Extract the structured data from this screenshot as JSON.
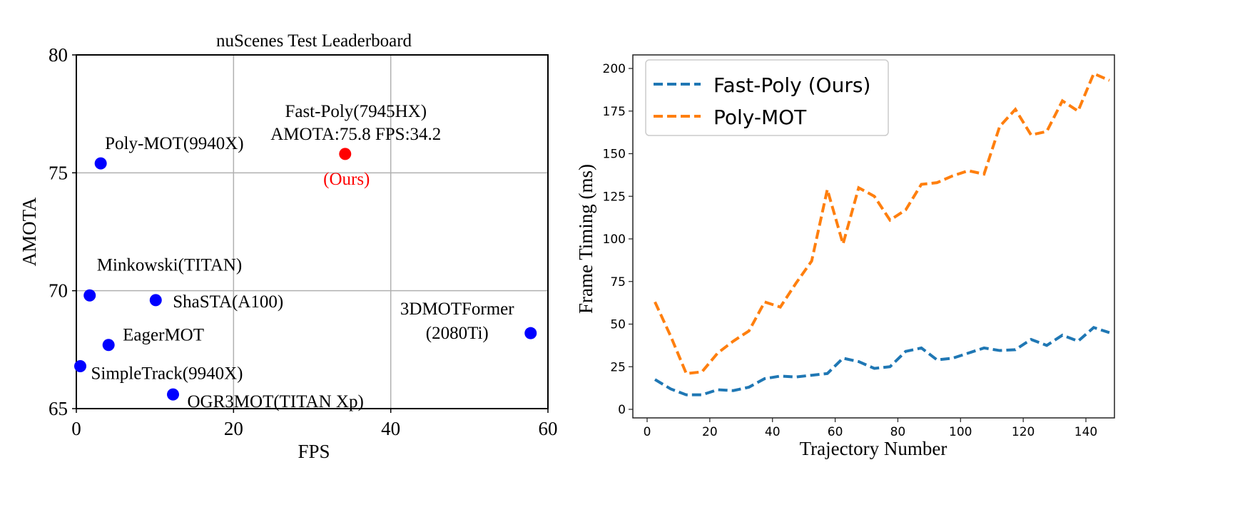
{
  "chart_data": [
    {
      "type": "scatter",
      "title": "nuScenes Test Leaderboard",
      "xlabel": "FPS",
      "ylabel": "AMOTA",
      "xlim": [
        0,
        60
      ],
      "ylim": [
        65,
        80
      ],
      "xticks": [
        "0",
        "20",
        "40",
        "60"
      ],
      "yticks": [
        "65",
        "70",
        "75",
        "80"
      ],
      "grid": true,
      "points": [
        {
          "label": "Poly-MOT(9940X)",
          "x": 3.1,
          "y": 75.4,
          "color": "#0000ff"
        },
        {
          "label": "Fast-Poly(7945HX)",
          "label2": "AMOTA:75.8 FPS:34.2",
          "note": "(Ours)",
          "x": 34.2,
          "y": 75.8,
          "color": "#ff0000"
        },
        {
          "label": "Minkowski(TITAN)",
          "x": 1.7,
          "y": 69.8,
          "color": "#0000ff"
        },
        {
          "label": "ShaSTA(A100)",
          "x": 10.1,
          "y": 69.6,
          "color": "#0000ff"
        },
        {
          "label": "EagerMOT",
          "x": 4.1,
          "y": 67.7,
          "color": "#0000ff"
        },
        {
          "label": "SimpleTrack(9940X)",
          "x": 0.5,
          "y": 66.8,
          "color": "#0000ff"
        },
        {
          "label": "OGR3MOT(TITAN Xp)",
          "x": 12.3,
          "y": 65.6,
          "color": "#0000ff"
        },
        {
          "label": "3DMOTFormer",
          "label2": "(2080Ti)",
          "x": 57.8,
          "y": 68.2,
          "color": "#0000ff"
        }
      ]
    },
    {
      "type": "line",
      "xlabel": "Trajectory Number",
      "ylabel": "Frame Timing (ms)",
      "xlim": [
        -5,
        152
      ],
      "ylim": [
        -5,
        207
      ],
      "xticks": [
        "0",
        "20",
        "40",
        "60",
        "80",
        "100",
        "120",
        "140"
      ],
      "yticks": [
        "0",
        "25",
        "50",
        "75",
        "100",
        "125",
        "150",
        "175",
        "200"
      ],
      "grid": false,
      "legend": "top-left",
      "x": [
        2.5,
        7.5,
        12.5,
        17.5,
        22.5,
        27.5,
        32.5,
        37.5,
        42.5,
        47.5,
        52.5,
        57.5,
        62.5,
        67.5,
        72.5,
        77.5,
        82.5,
        87.5,
        92.5,
        97.5,
        102.5,
        107.5,
        112.5,
        117.5,
        122.5,
        127.5,
        132.5,
        137.5,
        142.5,
        147.5
      ],
      "series": [
        {
          "name": "Fast-Poly (Ours)",
          "color": "#1f77b4",
          "values": [
            17.5,
            12,
            8.5,
            8.5,
            11.5,
            11,
            13,
            18,
            19.5,
            19,
            20,
            21,
            30,
            28,
            24,
            25,
            34,
            36,
            29,
            30,
            33,
            36,
            34.5,
            35,
            41,
            37.5,
            43.5,
            40,
            48,
            45
          ]
        },
        {
          "name": "Poly-MOT",
          "color": "#ff7f0e",
          "values": [
            63,
            43,
            21,
            22,
            33,
            40,
            46,
            63,
            60,
            74,
            87,
            129,
            97,
            130,
            125,
            111,
            117,
            132,
            133,
            137,
            140,
            138,
            166,
            176,
            161,
            163,
            181,
            175,
            197,
            193
          ]
        }
      ]
    }
  ]
}
